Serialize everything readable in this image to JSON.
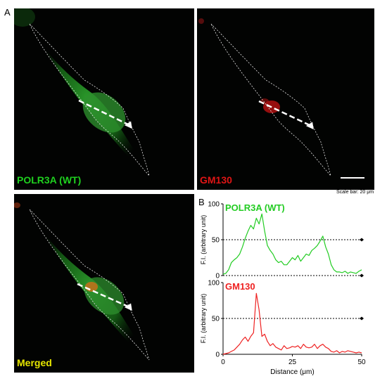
{
  "panel_labels": {
    "a": "A",
    "b": "B"
  },
  "micrographs": [
    {
      "label": "POLR3A (WT)",
      "label_color": "#1fd11f",
      "stain_color": "#1f8a1f"
    },
    {
      "label": "GM130",
      "label_color": "#e01515",
      "stain_color": "#c81414"
    },
    {
      "label": "Merged",
      "label_color": "#e6e600",
      "stain_color": "#1f8a1f"
    }
  ],
  "scale_bar": {
    "text": "Scale bar: 20 μm"
  },
  "chart_data": [
    {
      "type": "line",
      "series": [
        {
          "name": "POLR3A (WT)",
          "color": "#22cc22",
          "x": [
            0,
            1,
            2,
            3,
            4,
            5,
            6,
            7,
            8,
            9,
            10,
            11,
            12,
            13,
            14,
            15,
            16,
            17,
            18,
            19,
            20,
            21,
            22,
            23,
            24,
            25,
            26,
            27,
            28,
            29,
            30,
            31,
            32,
            33,
            34,
            35,
            36,
            37,
            38,
            39,
            40,
            41,
            42,
            43,
            44,
            45,
            46,
            47,
            48,
            49,
            50
          ],
          "y": [
            2,
            3,
            8,
            18,
            22,
            25,
            30,
            40,
            52,
            62,
            70,
            65,
            80,
            72,
            86,
            62,
            42,
            35,
            30,
            22,
            18,
            20,
            15,
            15,
            20,
            25,
            22,
            28,
            20,
            25,
            30,
            28,
            35,
            38,
            42,
            48,
            55,
            40,
            30,
            15,
            8,
            5,
            5,
            4,
            6,
            3,
            5,
            4,
            3,
            6,
            8
          ]
        }
      ],
      "ylabel": "F.I. (arbitrary unit)",
      "yticks": [
        0,
        50,
        100
      ],
      "ylim": [
        0,
        100
      ],
      "xlim": [
        0,
        50
      ],
      "reference_line": 50,
      "grid": false
    },
    {
      "type": "line",
      "series": [
        {
          "name": "GM130",
          "color": "#ee2222",
          "x": [
            0,
            1,
            2,
            3,
            4,
            5,
            6,
            7,
            8,
            9,
            10,
            11,
            12,
            13,
            14,
            15,
            16,
            17,
            18,
            19,
            20,
            21,
            22,
            23,
            24,
            25,
            26,
            27,
            28,
            29,
            30,
            31,
            32,
            33,
            34,
            35,
            36,
            37,
            38,
            39,
            40,
            41,
            42,
            43,
            44,
            45,
            46,
            47,
            48,
            49,
            50
          ],
          "y": [
            0,
            1,
            2,
            4,
            6,
            10,
            14,
            20,
            24,
            18,
            25,
            30,
            85,
            62,
            25,
            28,
            18,
            12,
            15,
            10,
            8,
            6,
            12,
            8,
            9,
            11,
            10,
            12,
            8,
            14,
            10,
            9,
            10,
            14,
            8,
            12,
            14,
            10,
            8,
            4,
            3,
            5,
            2,
            4,
            3,
            5,
            4,
            3,
            2,
            3,
            2
          ]
        }
      ],
      "ylabel": "F.I. (arbitrary unit)",
      "yticks": [
        0,
        50,
        100
      ],
      "ylim": [
        0,
        100
      ],
      "xlim": [
        0,
        50
      ],
      "reference_line": 50,
      "xlabel": "Distance (μm)",
      "xticks": [
        0,
        25,
        50
      ],
      "grid": false
    }
  ]
}
